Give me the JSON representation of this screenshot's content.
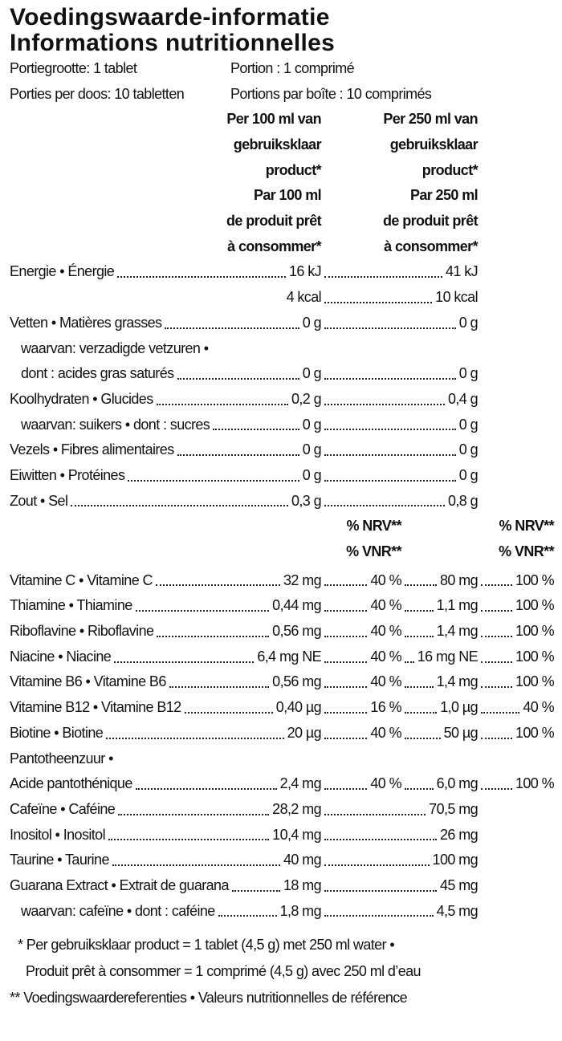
{
  "title": [
    "Voedingswaarde-informatie",
    "Informations nutritionnelles"
  ],
  "serving": [
    [
      "Portiegrootte: 1 tablet",
      "Portion : 1 comprimé"
    ],
    [
      "Porties per doos: 10 tabletten",
      "Portions par boîte : 10 comprimés"
    ]
  ],
  "column_headers": [
    [
      "Per 100 ml van",
      "gebruiksklaar",
      "product*",
      "Par 100 ml",
      "de produit prêt",
      "à consommer*"
    ],
    [
      "Per 250 ml van",
      "gebruiksklaar",
      "product*",
      "Par 250 ml",
      "de produit prêt",
      "à consommer*"
    ]
  ],
  "nutrients": [
    {
      "label": "Energie • Énergie",
      "per_100ml": "16 kJ",
      "per_250ml": "41 kJ"
    },
    {
      "per_100ml": "4 kcal",
      "per_250ml": "10 kcal"
    },
    {
      "label": "Vetten • Matières grasses",
      "per_100ml": "0 g",
      "per_250ml": "0 g"
    },
    {
      "label": "waarvan: verzadigde vetzuren •",
      "indent": true
    },
    {
      "label": "dont : acides gras saturés",
      "indent": true,
      "per_100ml": "0 g",
      "per_250ml": "0 g"
    },
    {
      "label": "Koolhydraten • Glucides",
      "per_100ml": "0,2 g",
      "per_250ml": "0,4 g"
    },
    {
      "label": "waarvan: suikers • dont : sucres",
      "indent": true,
      "per_100ml": "0 g",
      "per_250ml": "0 g"
    },
    {
      "label": "Vezels • Fibres alimentaires",
      "per_100ml": "0 g",
      "per_250ml": "0 g"
    },
    {
      "label": "Eiwitten • Protéines",
      "per_100ml": "0 g",
      "per_250ml": "0 g"
    },
    {
      "label": "Zout • Sel",
      "per_100ml": "0,3 g",
      "per_250ml": "0,8 g"
    }
  ],
  "nrv_headers": [
    [
      "% NRV**",
      "% VNR**"
    ],
    [
      "% NRV**",
      "% VNR**"
    ]
  ],
  "micronutrients": [
    {
      "label": "Vitamine C • Vitamine C",
      "per_100ml": "32 mg",
      "nrv_100ml": "40 %",
      "per_250ml": "80 mg",
      "nrv_250ml": "100 %"
    },
    {
      "label": "Thiamine • Thiamine",
      "per_100ml": "0,44 mg",
      "nrv_100ml": "40 %",
      "per_250ml": "1,1 mg",
      "nrv_250ml": "100 %"
    },
    {
      "label": "Riboflavine • Riboflavine",
      "per_100ml": "0,56 mg",
      "nrv_100ml": "40 %",
      "per_250ml": "1,4 mg",
      "nrv_250ml": "100 %"
    },
    {
      "label": "Niacine • Niacine",
      "per_100ml": "6,4 mg NE",
      "nrv_100ml": "40 %",
      "per_250ml": "16 mg NE",
      "nrv_250ml": "100 %"
    },
    {
      "label": "Vitamine B6 • Vitamine B6",
      "per_100ml": "0,56 mg",
      "nrv_100ml": "40 %",
      "per_250ml": "1,4 mg",
      "nrv_250ml": "100 %"
    },
    {
      "label": "Vitamine B12 • Vitamine B12",
      "per_100ml": "0,40 µg",
      "nrv_100ml": "16 %",
      "per_250ml": "1,0 µg",
      "nrv_250ml": "40 %"
    },
    {
      "label": "Biotine • Biotine",
      "per_100ml": "20 µg",
      "nrv_100ml": "40 %",
      "per_250ml": "50 µg",
      "nrv_250ml": "100 %"
    },
    {
      "label": "Pantotheenzuur •"
    },
    {
      "label": "Acide pantothénique",
      "per_100ml": "2,4 mg",
      "nrv_100ml": "40 %",
      "per_250ml": "6,0 mg",
      "nrv_250ml": "100 %"
    },
    {
      "label": "Cafeïne • Caféine",
      "per_100ml": "28,2 mg",
      "per_250ml": "70,5 mg"
    },
    {
      "label": "Inositol • Inositol",
      "per_100ml": "10,4 mg",
      "per_250ml": "26 mg"
    },
    {
      "label": "Taurine • Taurine",
      "per_100ml": "40 mg",
      "per_250ml": "100 mg"
    },
    {
      "label": "Guarana Extract • Extrait de guarana",
      "per_100ml": "18 mg",
      "per_250ml": "45 mg"
    },
    {
      "label": "waarvan: cafeïne • dont : caféine",
      "indent": true,
      "per_100ml": "1,8 mg",
      "per_250ml": "4,5 mg"
    }
  ],
  "footnotes": [
    {
      "text": "* Per gebruiksklaar product = 1 tablet (4,5 g) met 250 ml water •",
      "indent": 1
    },
    {
      "text": "Produit prêt à consommer = 1 comprimé (4,5 g) avec 250 ml d’eau",
      "indent": 2
    },
    {
      "text": "** Voedingswaardereferenties • Valeurs nutritionnelles de référence",
      "indent": 0
    }
  ]
}
